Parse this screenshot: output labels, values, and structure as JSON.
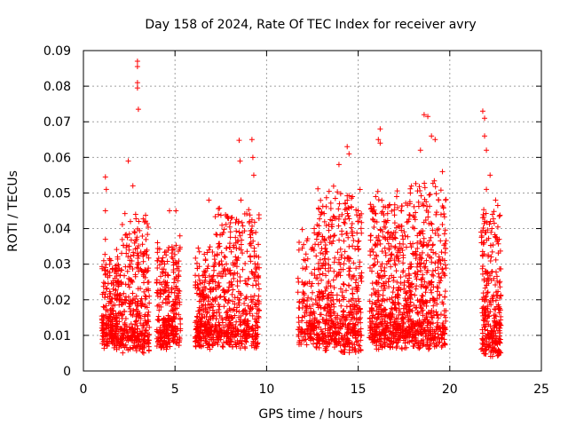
{
  "chart_data": {
    "type": "scatter",
    "title": "Day 158 of 2024, Rate Of TEC Index for receiver avry",
    "xlabel": "GPS time / hours",
    "ylabel": "ROTI / TECUs",
    "xlim": [
      0,
      25
    ],
    "ylim": [
      0,
      0.09
    ],
    "xticks": [
      0,
      5,
      10,
      15,
      20,
      25
    ],
    "xtick_labels": [
      "0",
      "5",
      "10",
      "15",
      "20",
      "25"
    ],
    "yticks": [
      0,
      0.01,
      0.02,
      0.03,
      0.04,
      0.05,
      0.06,
      0.07,
      0.08,
      0.09
    ],
    "ytick_labels": [
      "0",
      "0.01",
      "0.02",
      "0.03",
      "0.04",
      "0.05",
      "0.06",
      "0.07",
      "0.08",
      "0.09"
    ],
    "grid": true,
    "marker": "+",
    "marker_color": "#ff0000",
    "series": [
      {
        "name": "ROTI",
        "points": [
          [
            1.2,
            0.0545
          ],
          [
            1.25,
            0.051
          ],
          [
            1.2,
            0.045
          ],
          [
            1.2,
            0.037
          ],
          [
            1.5,
            0.031
          ],
          [
            2.45,
            0.059
          ],
          [
            2.7,
            0.052
          ],
          [
            2.95,
            0.087
          ],
          [
            2.95,
            0.0855
          ],
          [
            2.95,
            0.081
          ],
          [
            2.95,
            0.0795
          ],
          [
            3.0,
            0.0735
          ],
          [
            2.85,
            0.044
          ],
          [
            4.7,
            0.045
          ],
          [
            5.05,
            0.045
          ],
          [
            6.85,
            0.048
          ],
          [
            8.5,
            0.0648
          ],
          [
            8.55,
            0.059
          ],
          [
            8.6,
            0.048
          ],
          [
            9.2,
            0.065
          ],
          [
            9.25,
            0.06
          ],
          [
            9.3,
            0.055
          ],
          [
            12.6,
            0.04
          ],
          [
            13.95,
            0.058
          ],
          [
            14.4,
            0.063
          ],
          [
            14.5,
            0.061
          ],
          [
            15.0,
            0.045
          ],
          [
            16.2,
            0.068
          ],
          [
            16.1,
            0.065
          ],
          [
            16.2,
            0.064
          ],
          [
            17.1,
            0.049
          ],
          [
            18.4,
            0.062
          ],
          [
            18.6,
            0.072
          ],
          [
            18.8,
            0.0715
          ],
          [
            19.0,
            0.066
          ],
          [
            19.2,
            0.065
          ],
          [
            19.6,
            0.056
          ],
          [
            21.8,
            0.073
          ],
          [
            21.9,
            0.071
          ],
          [
            21.9,
            0.066
          ],
          [
            22.0,
            0.062
          ],
          [
            22.2,
            0.055
          ],
          [
            22.5,
            0.048
          ],
          [
            22.0,
            0.051
          ],
          [
            22.3,
            0.04
          ]
        ],
        "clusters": [
          {
            "x_start": 1.0,
            "x_end": 2.1,
            "y_low": 0.005,
            "y_high": 0.032,
            "count": 260
          },
          {
            "x_start": 2.1,
            "x_end": 3.6,
            "y_low": 0.004,
            "y_high": 0.043,
            "count": 330
          },
          {
            "x_start": 4.0,
            "x_end": 5.3,
            "y_low": 0.005,
            "y_high": 0.036,
            "count": 300
          },
          {
            "x_start": 6.1,
            "x_end": 7.2,
            "y_low": 0.005,
            "y_high": 0.034,
            "count": 260
          },
          {
            "x_start": 7.2,
            "x_end": 9.6,
            "y_low": 0.005,
            "y_high": 0.045,
            "count": 470
          },
          {
            "x_start": 11.7,
            "x_end": 12.7,
            "y_low": 0.006,
            "y_high": 0.038,
            "count": 150
          },
          {
            "x_start": 12.7,
            "x_end": 15.2,
            "y_low": 0.004,
            "y_high": 0.05,
            "count": 560
          },
          {
            "x_start": 15.6,
            "x_end": 17.5,
            "y_low": 0.005,
            "y_high": 0.048,
            "count": 470
          },
          {
            "x_start": 17.5,
            "x_end": 19.8,
            "y_low": 0.005,
            "y_high": 0.052,
            "count": 520
          },
          {
            "x_start": 21.7,
            "x_end": 22.8,
            "y_low": 0.003,
            "y_high": 0.046,
            "count": 280
          }
        ]
      }
    ]
  }
}
